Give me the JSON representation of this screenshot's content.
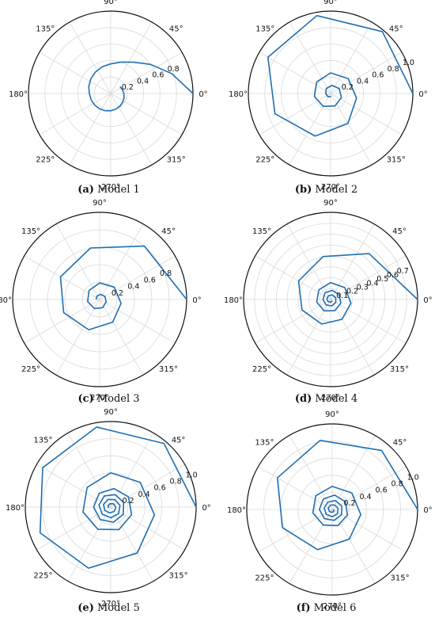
{
  "figure": {
    "angle_ticks": [
      "0°",
      "45°",
      "90°",
      "135°",
      "180°",
      "225°",
      "270°",
      "315°"
    ],
    "line_color": "#1f6fb2"
  },
  "chart_data": [
    {
      "type": "line",
      "coordinate_system": "polar",
      "caption_letter": "(a)",
      "caption_text": "Model 1",
      "rlim": [
        0,
        1.0
      ],
      "grid_rings": [
        0.2,
        0.4,
        0.6,
        0.8,
        1.0
      ],
      "r_tick_labels": [
        "0.2",
        "0.4",
        "0.6",
        "0.8"
      ],
      "r_tick_values": [
        0.2,
        0.4,
        0.6,
        0.8
      ],
      "r_label_angle_deg": 22,
      "series": [
        {
          "theta_deg": [
            0,
            18,
            36,
            54,
            72,
            90,
            108,
            126,
            144,
            162,
            180,
            198,
            216,
            234,
            252,
            270,
            288,
            306,
            324,
            342,
            360,
            378,
            396
          ],
          "r": [
            1.0,
            0.78,
            0.6,
            0.47,
            0.4,
            0.36,
            0.34,
            0.32,
            0.3,
            0.28,
            0.26,
            0.25,
            0.24,
            0.23,
            0.22,
            0.21,
            0.2,
            0.19,
            0.18,
            0.17,
            0.16,
            0.15,
            0.14
          ]
        }
      ]
    },
    {
      "type": "line",
      "coordinate_system": "polar",
      "caption_letter": "(b)",
      "caption_text": "Model 2",
      "rlim": [
        0,
        1.0
      ],
      "grid_rings": [
        0.2,
        0.4,
        0.6,
        0.8,
        1.0
      ],
      "r_tick_labels": [
        "0.2",
        "0.4",
        "0.6",
        "0.8",
        "1.0"
      ],
      "r_tick_values": [
        0.2,
        0.4,
        0.6,
        0.8,
        1.0
      ],
      "r_label_angle_deg": 22,
      "series": [
        {
          "theta_deg": [
            0,
            50,
            100,
            150,
            200,
            250,
            300,
            350,
            400,
            450,
            500,
            550,
            600,
            650,
            700,
            750,
            800,
            850,
            900,
            950,
            1000
          ],
          "r": [
            1.0,
            0.98,
            0.96,
            0.88,
            0.72,
            0.55,
            0.42,
            0.32,
            0.28,
            0.25,
            0.22,
            0.2,
            0.18,
            0.16,
            0.14,
            0.12,
            0.1,
            0.08,
            0.06,
            0.05,
            0.04
          ]
        }
      ]
    },
    {
      "type": "line",
      "coordinate_system": "polar",
      "caption_letter": "(c)",
      "caption_text": "Model 3",
      "rlim": [
        0,
        1.0
      ],
      "grid_rings": [
        0.2,
        0.4,
        0.6,
        0.8,
        1.0
      ],
      "r_tick_labels": [
        "0.2",
        "0.4",
        "0.6",
        "0.8"
      ],
      "r_tick_values": [
        0.2,
        0.4,
        0.6,
        0.8
      ],
      "r_label_angle_deg": 22,
      "series": [
        {
          "theta_deg": [
            0,
            50,
            100,
            150,
            200,
            250,
            300,
            350,
            400,
            450,
            500,
            550,
            600,
            650,
            700,
            750,
            800,
            850,
            900
          ],
          "r": [
            1.0,
            0.8,
            0.6,
            0.52,
            0.44,
            0.37,
            0.3,
            0.25,
            0.22,
            0.19,
            0.16,
            0.14,
            0.12,
            0.1,
            0.08,
            0.07,
            0.06,
            0.05,
            0.04
          ]
        }
      ]
    },
    {
      "type": "line",
      "coordinate_system": "polar",
      "caption_letter": "(d)",
      "caption_text": "Model 4",
      "rlim": [
        0,
        0.8
      ],
      "grid_rings": [
        0.1,
        0.2,
        0.3,
        0.4,
        0.5,
        0.6,
        0.7,
        0.8
      ],
      "r_tick_labels": [
        "0.1",
        "0.2",
        "0.3",
        "0.4",
        "0.5",
        "0.6",
        "0.7"
      ],
      "r_tick_values": [
        0.1,
        0.2,
        0.3,
        0.4,
        0.5,
        0.6,
        0.7
      ],
      "r_label_angle_deg": 22,
      "series": [
        {
          "theta_deg": [
            0,
            50,
            100,
            150,
            200,
            250,
            300,
            350,
            400,
            450,
            500,
            550,
            600,
            650,
            700,
            750,
            800,
            850,
            900,
            950,
            1000,
            1050,
            1100,
            1150,
            1200,
            1250,
            1300,
            1350,
            1400
          ],
          "r": [
            0.8,
            0.55,
            0.4,
            0.34,
            0.28,
            0.24,
            0.21,
            0.19,
            0.17,
            0.155,
            0.14,
            0.13,
            0.12,
            0.11,
            0.1,
            0.09,
            0.085,
            0.08,
            0.07,
            0.065,
            0.06,
            0.055,
            0.05,
            0.045,
            0.04,
            0.035,
            0.03,
            0.025,
            0.02
          ]
        }
      ]
    },
    {
      "type": "line",
      "coordinate_system": "polar",
      "caption_letter": "(e)",
      "caption_text": "Model 5",
      "rlim": [
        0,
        1.0
      ],
      "grid_rings": [
        0.2,
        0.4,
        0.6,
        0.8,
        1.0
      ],
      "r_tick_labels": [
        "0.2",
        "0.4",
        "0.6",
        "0.8",
        "1.0"
      ],
      "r_tick_values": [
        0.2,
        0.4,
        0.6,
        0.8,
        1.0
      ],
      "r_label_angle_deg": 22,
      "series": [
        {
          "theta_deg": [
            0,
            50,
            100,
            150,
            200,
            250,
            300,
            350,
            400,
            450,
            500,
            550,
            600,
            650,
            700,
            750,
            800,
            850,
            900,
            950,
            1000,
            1050,
            1100,
            1150,
            1200,
            1250,
            1300,
            1350,
            1400,
            1450,
            1500,
            1550,
            1600,
            1650,
            1700,
            1750,
            1800,
            1850,
            1900,
            1950,
            2000
          ],
          "r": [
            1.0,
            0.97,
            0.95,
            0.92,
            0.88,
            0.76,
            0.62,
            0.52,
            0.45,
            0.4,
            0.36,
            0.33,
            0.3,
            0.28,
            0.26,
            0.24,
            0.22,
            0.21,
            0.2,
            0.19,
            0.18,
            0.17,
            0.16,
            0.155,
            0.15,
            0.14,
            0.13,
            0.125,
            0.12,
            0.11,
            0.1,
            0.095,
            0.09,
            0.08,
            0.07,
            0.065,
            0.06,
            0.05,
            0.04,
            0.035,
            0.03
          ]
        }
      ]
    },
    {
      "type": "line",
      "coordinate_system": "polar",
      "caption_letter": "(f)",
      "caption_text": "Model 6",
      "rlim": [
        0,
        1.0
      ],
      "grid_rings": [
        0.2,
        0.4,
        0.6,
        0.8,
        1.0
      ],
      "r_tick_labels": [
        "0.2",
        "0.4",
        "0.6",
        "0.8",
        "1.0"
      ],
      "r_tick_values": [
        0.2,
        0.4,
        0.6,
        0.8,
        1.0
      ],
      "r_label_angle_deg": 22,
      "series": [
        {
          "theta_deg": [
            0,
            50,
            100,
            150,
            200,
            250,
            300,
            350,
            400,
            450,
            500,
            550,
            600,
            650,
            700,
            750,
            800,
            850,
            900,
            950,
            1000,
            1050,
            1100,
            1150,
            1200,
            1250,
            1300,
            1350,
            1400,
            1450,
            1500,
            1550,
            1600,
            1650,
            1700,
            1750,
            1800
          ],
          "r": [
            1.0,
            0.9,
            0.82,
            0.74,
            0.62,
            0.5,
            0.4,
            0.34,
            0.3,
            0.27,
            0.25,
            0.23,
            0.21,
            0.2,
            0.19,
            0.18,
            0.17,
            0.16,
            0.15,
            0.14,
            0.13,
            0.125,
            0.12,
            0.11,
            0.1,
            0.095,
            0.09,
            0.085,
            0.08,
            0.07,
            0.06,
            0.055,
            0.05,
            0.04,
            0.035,
            0.03,
            0.02
          ]
        }
      ]
    }
  ]
}
